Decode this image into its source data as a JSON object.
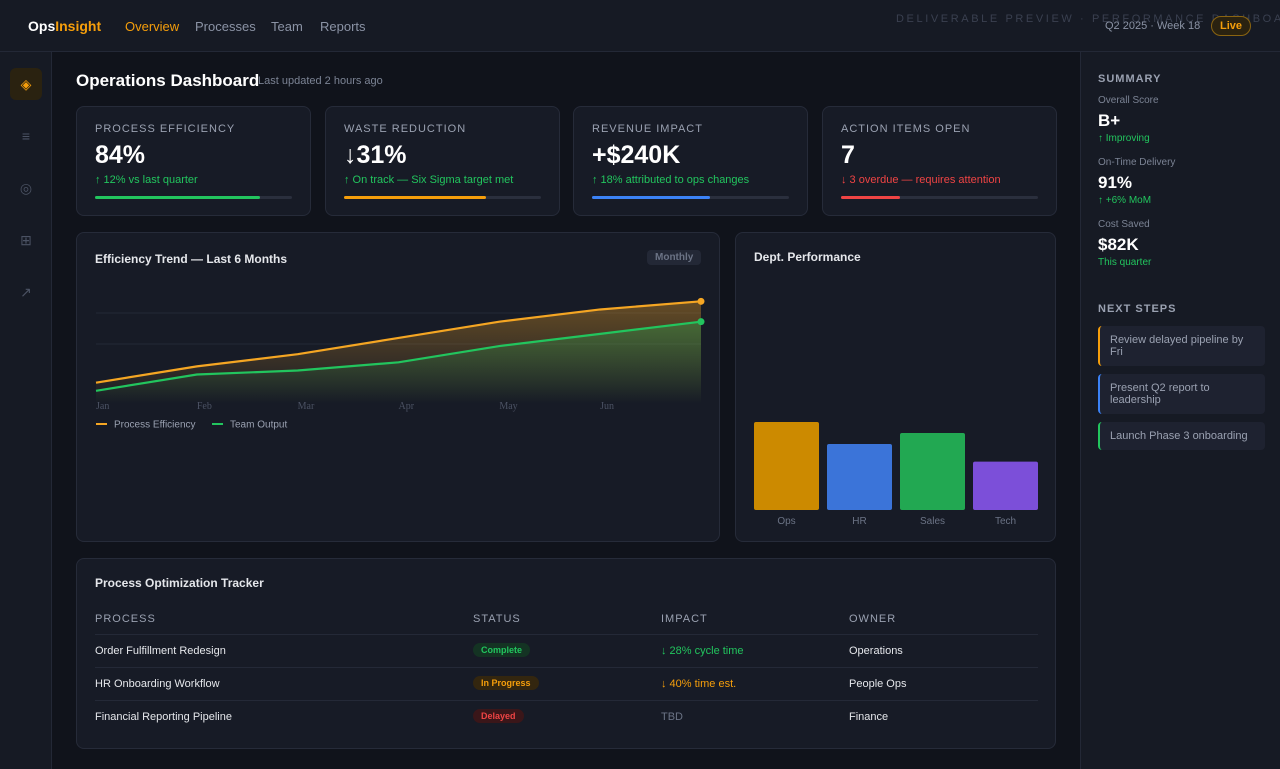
{
  "nav": {
    "logo_part1": "Ops",
    "logo_part2": "Insight",
    "links": [
      "Overview",
      "Processes",
      "Team",
      "Reports"
    ],
    "watermark": "DELIVERABLE PREVIEW · PERFORMANCE DASHBOARD",
    "period": "Q2 2025 · Week 18",
    "status": "Live"
  },
  "sidebar": {
    "icons": [
      "◈",
      "≡",
      "◎",
      "⊞",
      "↗"
    ]
  },
  "header": {
    "title": "Operations Dashboard",
    "subtitle": "Last updated 2 hours ago"
  },
  "kpis": [
    {
      "label": "PROCESS EFFICIENCY",
      "value": "84%",
      "delta": "↑ 12% vs last quarter",
      "progress": 84,
      "color": "#22c55e"
    },
    {
      "label": "WASTE REDUCTION",
      "value": "↓31%",
      "delta": "↑ On track — Six Sigma target met",
      "progress": 72,
      "color": "#f59e0b"
    },
    {
      "label": "REVENUE IMPACT",
      "value": "+$240K",
      "delta": "↑ 18% attributed to ops changes",
      "progress": 60,
      "color": "#3b82f6"
    },
    {
      "label": "ACTION ITEMS OPEN",
      "value": "7",
      "delta": "↓ 3 overdue — requires attention",
      "progress": 30,
      "color": "#ef4444"
    }
  ],
  "trend_chart": {
    "type": "line",
    "title": "Efficiency Trend — Last 6 Months",
    "badge": "Monthly",
    "categories": [
      "Jan",
      "Feb",
      "Mar",
      "Apr",
      "May",
      "Jun",
      null
    ],
    "ylim": [
      60,
      90
    ],
    "series": [
      {
        "name": "Process Efficiency",
        "color": "#f5a623",
        "values": [
          65,
          69,
          72,
          76,
          80,
          83,
          85
        ]
      },
      {
        "name": "Team Output",
        "color": "#22c55e",
        "values": [
          63,
          67,
          68,
          70,
          74,
          77,
          80
        ]
      }
    ]
  },
  "dept_chart": {
    "type": "bar",
    "title": "Dept. Performance",
    "categories": [
      "Ops",
      "HR",
      "Sales",
      "Tech"
    ],
    "values": [
      40,
      30,
      35,
      22
    ],
    "colors": [
      "#cc8a00",
      "#3b74d9",
      "#22a852",
      "#7c4fd9"
    ],
    "ylim": [
      0,
      100
    ]
  },
  "tracker": {
    "title": "Process Optimization Tracker",
    "columns": [
      "PROCESS",
      "STATUS",
      "IMPACT",
      "OWNER"
    ],
    "rows": [
      [
        "Order Fulfillment Redesign",
        "Complete",
        "↓ 28% cycle time",
        "Operations"
      ],
      [
        "HR Onboarding Workflow",
        "In Progress",
        "↓ 40% time est.",
        "People Ops"
      ],
      [
        "Financial Reporting Pipeline",
        "Delayed",
        "TBD",
        "Finance"
      ]
    ]
  },
  "summary": {
    "title": "SUMMARY",
    "items": [
      {
        "label": "Overall Score",
        "value": "B+",
        "note": "↑ Improving"
      },
      {
        "label": "On-Time Delivery",
        "value": "91%",
        "note": "↑ +6% MoM"
      },
      {
        "label": "Cost Saved",
        "value": "$82K",
        "note": "This quarter"
      }
    ]
  },
  "next_steps": {
    "title": "NEXT STEPS",
    "items": [
      "Review delayed pipeline by Fri",
      "Present Q2 report to leadership",
      "Launch Phase 3 onboarding"
    ]
  }
}
